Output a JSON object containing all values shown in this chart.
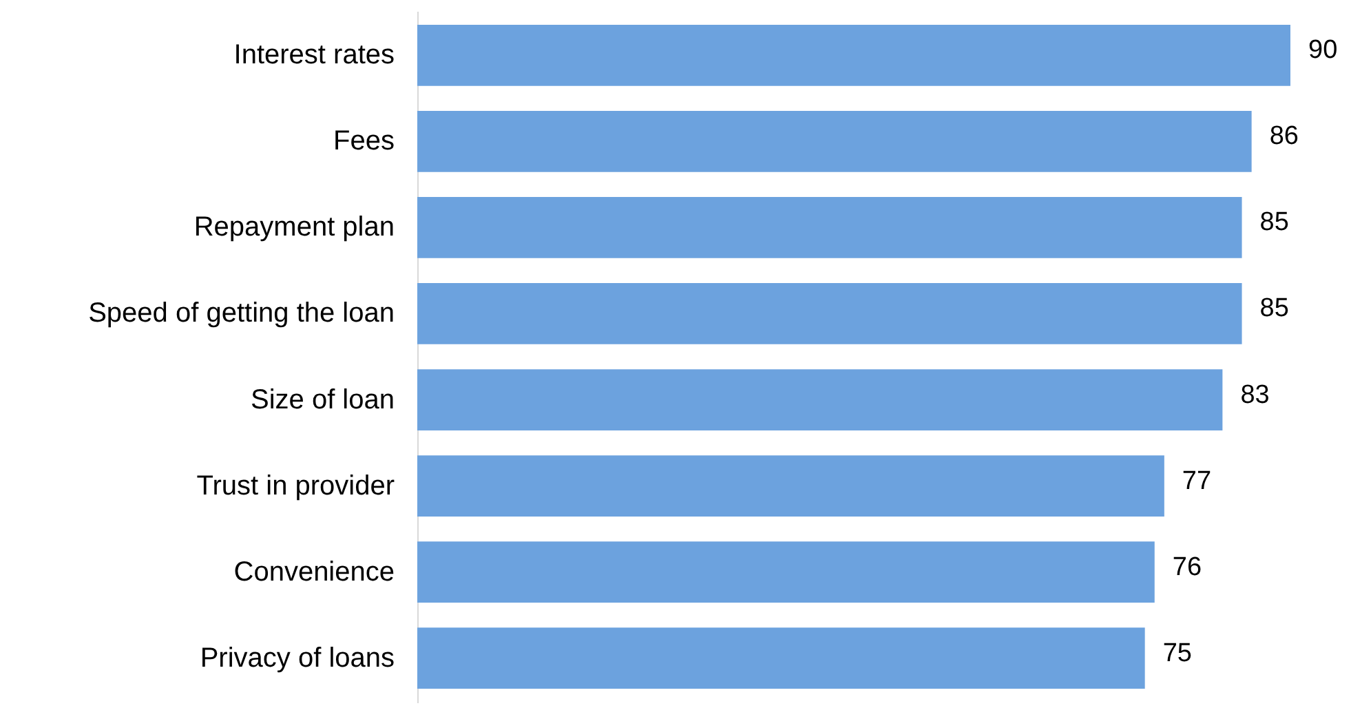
{
  "chart_data": {
    "type": "bar",
    "orientation": "horizontal",
    "categories": [
      "Interest rates",
      "Fees",
      "Repayment plan",
      "Speed of getting the loan",
      "Size of loan",
      "Trust in provider",
      "Convenience",
      "Privacy of loans"
    ],
    "values": [
      90,
      86,
      85,
      85,
      83,
      77,
      76,
      75
    ],
    "color": "#6ca2de",
    "data_labels": true
  }
}
